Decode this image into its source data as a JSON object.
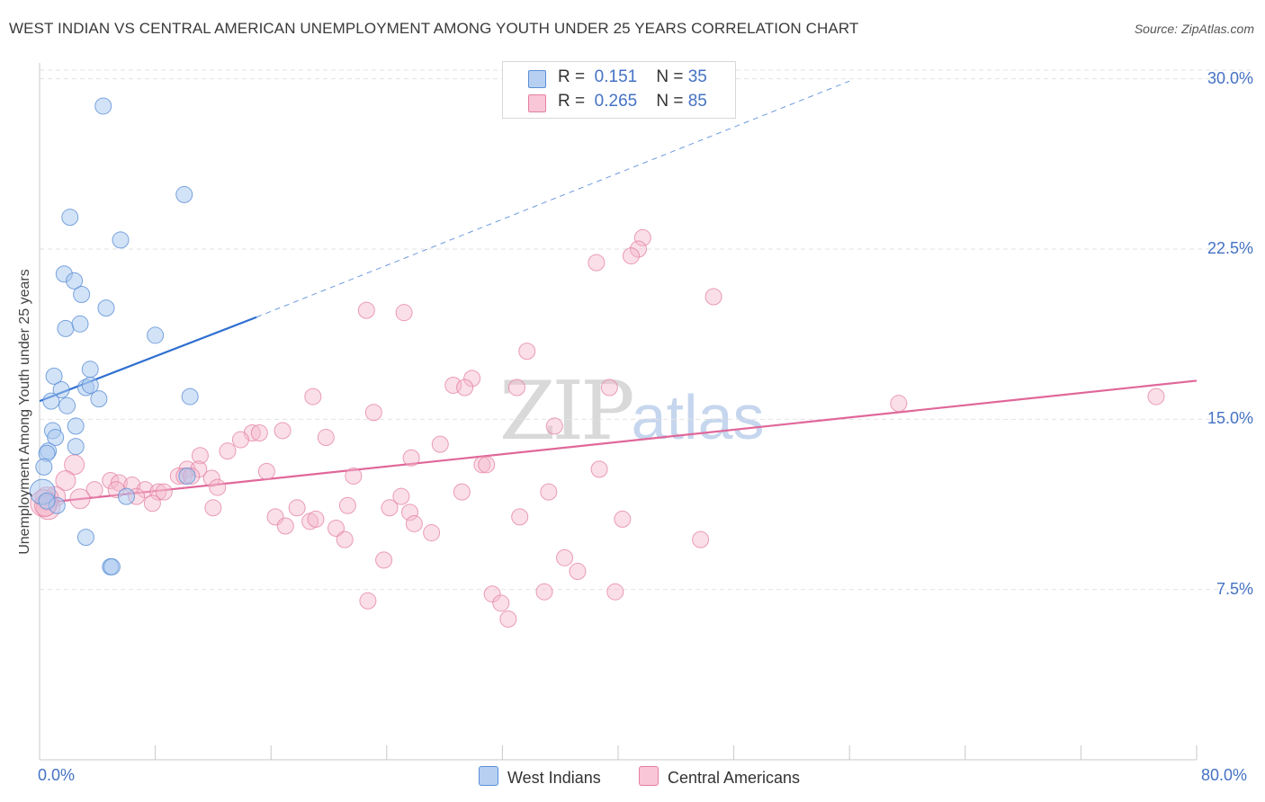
{
  "header": {
    "title": "WEST INDIAN VS CENTRAL AMERICAN UNEMPLOYMENT AMONG YOUTH UNDER 25 YEARS CORRELATION CHART",
    "source_label": "Source:",
    "source_value": "ZipAtlas.com"
  },
  "watermark": {
    "zip": "ZIP",
    "atlas": "atlas"
  },
  "legend": {
    "rows": [
      {
        "r_label": "R =",
        "r_value": "0.151",
        "n_label": "N =",
        "n_value": "35"
      },
      {
        "r_label": "R =",
        "r_value": "0.265",
        "n_label": "N =",
        "n_value": "85"
      }
    ]
  },
  "bottom_legend": {
    "series1": "West Indians",
    "series2": "Central Americans"
  },
  "colors": {
    "blue_fill": "#a8c8f0",
    "blue_stroke": "#5b8fd6",
    "blue_line": "#2e6fd0",
    "pink_fill": "#f5b8cc",
    "pink_stroke": "#e47fa0",
    "pink_line": "#e0679a",
    "grid": "#e2e2e2",
    "tick_text": "#4472c4"
  },
  "chart_data": {
    "type": "scatter",
    "title": "WEST INDIAN VS CENTRAL AMERICAN UNEMPLOYMENT AMONG YOUTH UNDER 25 YEARS CORRELATION CHART",
    "xlabel": "",
    "ylabel": "Unemployment Among Youth under 25 years",
    "xlim": [
      0,
      80
    ],
    "ylim": [
      0,
      30.7
    ],
    "x_tick_labels": [
      "0.0%",
      "80.0%"
    ],
    "y_ticks": [
      7.5,
      15.0,
      22.5,
      30.0
    ],
    "y_tick_labels": [
      "7.5%",
      "15.0%",
      "22.5%",
      "30.0%"
    ],
    "grid": true,
    "legend_position": "top-center",
    "series": [
      {
        "name": "West Indians",
        "R": 0.151,
        "N": 35,
        "trend": {
          "x0": 0,
          "y0": 15.8,
          "x1": 15.0,
          "y1": 19.5,
          "extend_to_x": 56,
          "extend_y": 29.9
        },
        "points": [
          [
            4.4,
            28.8
          ],
          [
            10.0,
            24.9
          ],
          [
            2.1,
            23.9
          ],
          [
            5.6,
            22.9
          ],
          [
            1.7,
            21.4
          ],
          [
            2.4,
            21.1
          ],
          [
            2.9,
            20.5
          ],
          [
            4.6,
            19.9
          ],
          [
            1.8,
            19.0
          ],
          [
            2.8,
            19.2
          ],
          [
            8.0,
            18.7
          ],
          [
            3.5,
            17.2
          ],
          [
            1.0,
            16.9
          ],
          [
            1.5,
            16.3
          ],
          [
            3.2,
            16.4
          ],
          [
            3.5,
            16.5
          ],
          [
            10.4,
            16.0
          ],
          [
            0.8,
            15.8
          ],
          [
            1.9,
            15.6
          ],
          [
            4.1,
            15.9
          ],
          [
            2.5,
            14.7
          ],
          [
            0.9,
            14.5
          ],
          [
            1.1,
            14.2
          ],
          [
            2.5,
            13.8
          ],
          [
            0.6,
            13.6
          ],
          [
            0.5,
            13.5
          ],
          [
            0.3,
            12.9
          ],
          [
            10.2,
            12.5
          ],
          [
            0.2,
            11.8
          ],
          [
            6.0,
            11.6
          ],
          [
            1.2,
            11.2
          ],
          [
            3.2,
            9.8
          ],
          [
            4.9,
            8.5
          ],
          [
            5.0,
            8.5
          ],
          [
            0.5,
            11.4
          ]
        ],
        "point_sizes": [
          9,
          9,
          9,
          9,
          9,
          9,
          9,
          9,
          9,
          9,
          9,
          9,
          9,
          9,
          9,
          9,
          9,
          9,
          9,
          9,
          9,
          9,
          9,
          9,
          9,
          9,
          9,
          9,
          14,
          9,
          9,
          9,
          9,
          9,
          9
        ]
      },
      {
        "name": "Central Americans",
        "R": 0.265,
        "N": 85,
        "trend": {
          "x0": 0,
          "y0": 11.3,
          "x1": 80,
          "y1": 16.7
        },
        "points": [
          [
            41.7,
            23.0
          ],
          [
            41.4,
            22.5
          ],
          [
            40.9,
            22.2
          ],
          [
            38.5,
            21.9
          ],
          [
            46.6,
            20.4
          ],
          [
            22.6,
            19.8
          ],
          [
            25.2,
            19.7
          ],
          [
            33.7,
            18.0
          ],
          [
            29.9,
            16.8
          ],
          [
            28.6,
            16.5
          ],
          [
            29.4,
            16.4
          ],
          [
            33.0,
            16.4
          ],
          [
            39.4,
            16.4
          ],
          [
            18.9,
            16.0
          ],
          [
            59.4,
            15.7
          ],
          [
            77.2,
            16.0
          ],
          [
            23.1,
            15.3
          ],
          [
            35.6,
            14.7
          ],
          [
            16.8,
            14.5
          ],
          [
            14.7,
            14.4
          ],
          [
            15.2,
            14.4
          ],
          [
            19.8,
            14.2
          ],
          [
            13.9,
            14.1
          ],
          [
            27.7,
            13.9
          ],
          [
            13.0,
            13.6
          ],
          [
            11.1,
            13.4
          ],
          [
            25.7,
            13.3
          ],
          [
            30.6,
            13.0
          ],
          [
            30.9,
            13.0
          ],
          [
            10.2,
            12.8
          ],
          [
            11.0,
            12.8
          ],
          [
            15.7,
            12.7
          ],
          [
            38.7,
            12.8
          ],
          [
            2.4,
            13.0
          ],
          [
            9.6,
            12.5
          ],
          [
            10.0,
            12.5
          ],
          [
            21.7,
            12.5
          ],
          [
            11.9,
            12.4
          ],
          [
            4.9,
            12.3
          ],
          [
            1.8,
            12.3
          ],
          [
            5.5,
            12.2
          ],
          [
            6.4,
            12.1
          ],
          [
            12.3,
            12.0
          ],
          [
            3.8,
            11.9
          ],
          [
            5.3,
            11.9
          ],
          [
            7.3,
            11.9
          ],
          [
            8.2,
            11.8
          ],
          [
            8.6,
            11.8
          ],
          [
            29.2,
            11.8
          ],
          [
            35.2,
            11.8
          ],
          [
            25.0,
            11.6
          ],
          [
            6.7,
            11.6
          ],
          [
            2.8,
            11.5
          ],
          [
            1.1,
            11.6
          ],
          [
            0.5,
            11.5
          ],
          [
            7.8,
            11.3
          ],
          [
            21.3,
            11.2
          ],
          [
            12.0,
            11.1
          ],
          [
            24.2,
            11.1
          ],
          [
            17.8,
            11.1
          ],
          [
            25.6,
            10.9
          ],
          [
            16.3,
            10.7
          ],
          [
            33.2,
            10.7
          ],
          [
            40.3,
            10.6
          ],
          [
            18.7,
            10.5
          ],
          [
            19.1,
            10.6
          ],
          [
            25.9,
            10.4
          ],
          [
            17.0,
            10.3
          ],
          [
            20.5,
            10.2
          ],
          [
            27.1,
            10.0
          ],
          [
            21.1,
            9.7
          ],
          [
            45.7,
            9.7
          ],
          [
            36.3,
            8.9
          ],
          [
            23.8,
            8.8
          ],
          [
            37.2,
            8.3
          ],
          [
            0.3,
            11.3
          ],
          [
            0.6,
            11.1
          ],
          [
            31.3,
            7.3
          ],
          [
            39.8,
            7.4
          ],
          [
            34.9,
            7.4
          ],
          [
            22.7,
            7.0
          ],
          [
            31.9,
            6.9
          ],
          [
            32.4,
            6.2
          ],
          [
            10.5,
            12.5
          ],
          [
            0.4,
            11.2
          ]
        ],
        "point_sizes": [
          9,
          9,
          9,
          9,
          9,
          9,
          9,
          9,
          9,
          9,
          9,
          9,
          9,
          9,
          9,
          9,
          9,
          9,
          9,
          9,
          9,
          9,
          9,
          9,
          9,
          9,
          9,
          9,
          9,
          9,
          9,
          9,
          9,
          11,
          9,
          9,
          9,
          9,
          9,
          11,
          9,
          9,
          9,
          9,
          9,
          9,
          9,
          9,
          9,
          9,
          9,
          9,
          11,
          11,
          13,
          9,
          9,
          9,
          9,
          9,
          9,
          9,
          9,
          9,
          9,
          9,
          9,
          9,
          9,
          9,
          9,
          9,
          9,
          9,
          9,
          15,
          13,
          9,
          9,
          9,
          9,
          9,
          9,
          9,
          12
        ]
      }
    ]
  }
}
